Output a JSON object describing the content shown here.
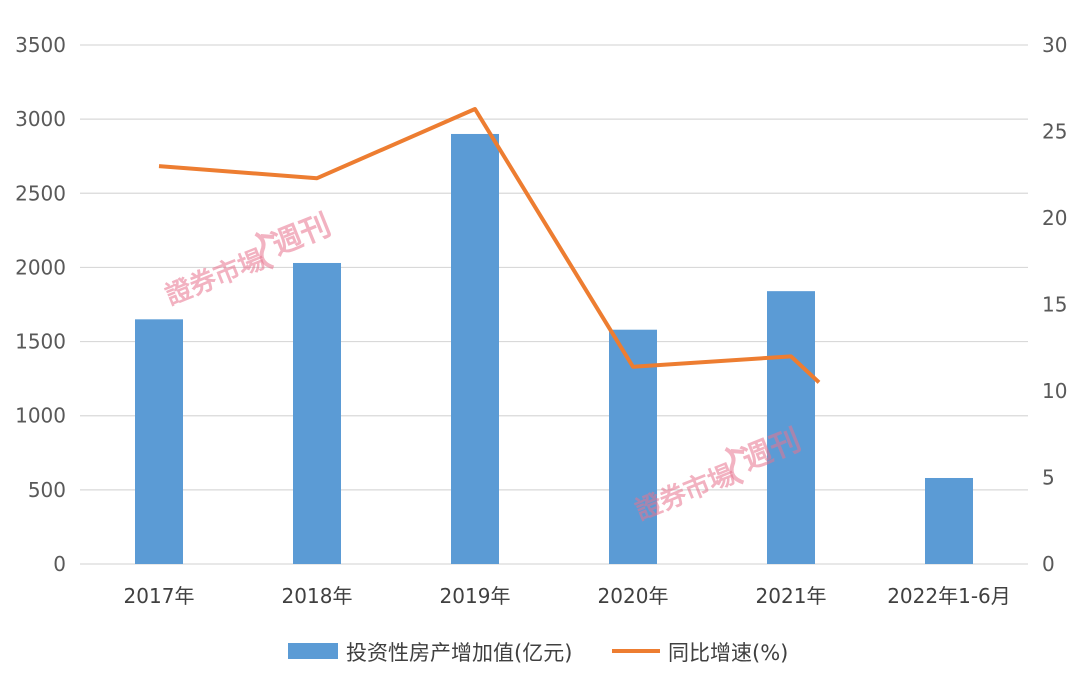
{
  "chart_data": {
    "type": "bar",
    "categories": [
      "2017年",
      "2018年",
      "2019年",
      "2020年",
      "2021年",
      "2022年1-6月"
    ],
    "series": [
      {
        "name": "投资性房产增加值(亿元)",
        "type": "bar",
        "axis": "left",
        "color": "#5b9bd5",
        "values": [
          1650,
          2030,
          2900,
          1580,
          1840,
          580
        ]
      },
      {
        "name": "同比增速(%)",
        "type": "line",
        "axis": "right",
        "color": "#ed7d31",
        "values": [
          23.0,
          22.3,
          26.3,
          11.4,
          12.0,
          10.5
        ]
      }
    ],
    "ylim": [
      0,
      3500
    ],
    "y2lim": [
      0,
      30
    ],
    "yticks": [
      "0",
      "500",
      "1000",
      "1500",
      "2000",
      "2500",
      "3000",
      "3500"
    ],
    "y2ticks": [
      "0",
      "5",
      "10",
      "15",
      "20",
      "25",
      "30"
    ],
    "grid": true,
    "legend_position": "bottom"
  },
  "watermark": {
    "main": "證券市場",
    "brand": "週刊"
  }
}
